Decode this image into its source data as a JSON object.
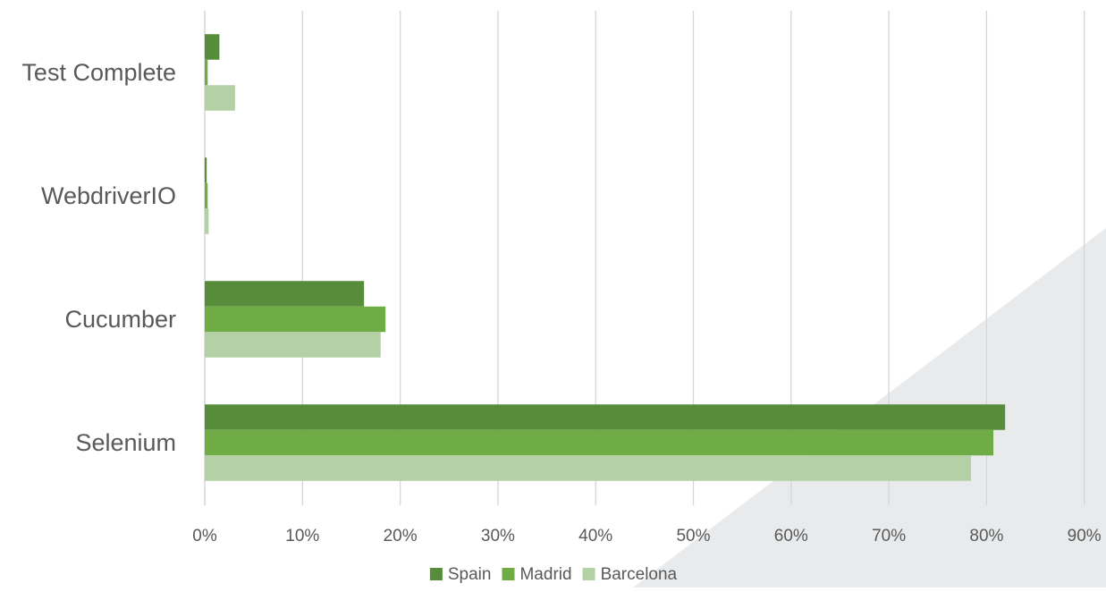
{
  "chart_data": {
    "type": "bar",
    "orientation": "horizontal",
    "categories": [
      "Test Complete",
      "WebdriverIO",
      "Cucumber",
      "Selenium"
    ],
    "series": [
      {
        "name": "Spain",
        "color": "#568c3a",
        "values": [
          1.5,
          0.2,
          16.3,
          81.9
        ]
      },
      {
        "name": "Madrid",
        "color": "#6fac46",
        "values": [
          0.3,
          0.3,
          18.5,
          80.7
        ]
      },
      {
        "name": "Barcelona",
        "color": "#b4d0a5",
        "values": [
          3.1,
          0.4,
          18.0,
          78.4
        ]
      }
    ],
    "x_ticks": [
      "0%",
      "10%",
      "20%",
      "30%",
      "40%",
      "50%",
      "60%",
      "70%",
      "80%",
      "90%"
    ],
    "xlim": [
      0,
      90
    ],
    "grid": "vertical",
    "legend_position": "bottom",
    "title": "",
    "xlabel": "",
    "ylabel": "",
    "background_shape_color": "#e8eaec",
    "gridline_color": "#d6d6d6",
    "label_color": "#595959"
  }
}
